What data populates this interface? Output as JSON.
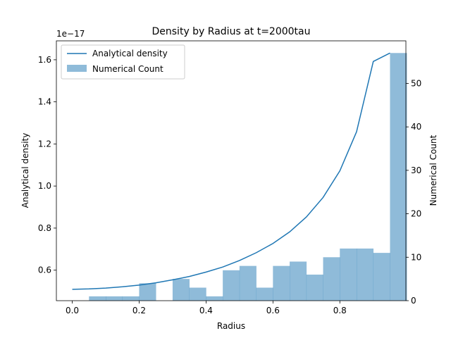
{
  "chart_data": {
    "type": "bar",
    "title": "Density by Radius at t=2000tau",
    "xlabel": "Radius",
    "ylabel_left": "Analytical density",
    "ylabel_right": "Numerical Count",
    "left_axis_multiplier": "1e−17",
    "xlim": [
      -0.0475,
      0.9975
    ],
    "ylim_left": [
      0.455,
      1.69
    ],
    "ylim_right": [
      0,
      59.8
    ],
    "x_ticks": [
      0.0,
      0.2,
      0.4,
      0.6,
      0.8
    ],
    "x_tick_labels": [
      "0.0",
      "0.2",
      "0.4",
      "0.6",
      "0.8"
    ],
    "left_ticks": [
      0.6,
      0.8,
      1.0,
      1.2,
      1.4,
      1.6
    ],
    "left_tick_labels": [
      "0.6",
      "0.8",
      "1.0",
      "1.2",
      "1.4",
      "1.6"
    ],
    "right_ticks": [
      0,
      10,
      20,
      30,
      40,
      50
    ],
    "right_tick_labels": [
      "0",
      "10",
      "20",
      "30",
      "40",
      "50"
    ],
    "grid": false,
    "legend_position": "top-left",
    "series": [
      {
        "name": "Analytical density",
        "type": "line",
        "axis": "left",
        "color": "#1f77b4",
        "x": [
          0.0,
          0.05,
          0.1,
          0.15,
          0.2,
          0.25,
          0.3,
          0.35,
          0.4,
          0.45,
          0.5,
          0.55,
          0.6,
          0.65,
          0.7,
          0.75,
          0.8,
          0.85,
          0.9,
          0.95
        ],
        "y": [
          0.509,
          0.511,
          0.515,
          0.521,
          0.529,
          0.54,
          0.554,
          0.57,
          0.591,
          0.615,
          0.646,
          0.683,
          0.727,
          0.782,
          0.853,
          0.946,
          1.072,
          1.258,
          1.592,
          1.632
        ]
      },
      {
        "name": "Numerical Count",
        "type": "bar",
        "axis": "right",
        "color": "#1f77b4",
        "bin_edges": [
          0.05,
          0.1,
          0.15,
          0.2,
          0.25,
          0.3,
          0.35,
          0.4,
          0.45,
          0.5,
          0.55,
          0.6,
          0.65,
          0.7,
          0.75,
          0.8,
          0.85,
          0.9,
          0.95
        ],
        "values": [
          1,
          1,
          1,
          4,
          0,
          5,
          3,
          1,
          7,
          8,
          3,
          8,
          9,
          6,
          10,
          12,
          12,
          11,
          57
        ]
      }
    ]
  }
}
